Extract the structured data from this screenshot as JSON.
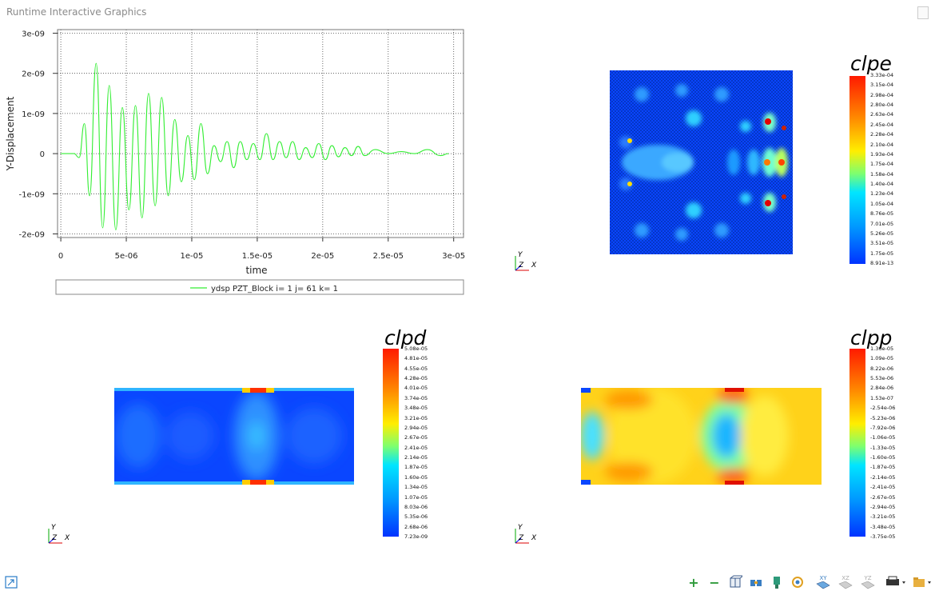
{
  "window": {
    "title": "Runtime Interactive Graphics"
  },
  "chart_data": {
    "type": "line",
    "title": "",
    "xlabel": "time",
    "ylabel": "Y-Displacement",
    "xlim": [
      0,
      3e-05
    ],
    "ylim": [
      -2e-09,
      3e-09
    ],
    "x_ticks": [
      "0",
      "5e-06",
      "1e-05",
      "1.5e-05",
      "2e-05",
      "2.5e-05",
      "3e-05"
    ],
    "y_ticks": [
      "3e-09",
      "2e-09",
      "1e-09",
      "0",
      "-1e-09",
      "-2e-09"
    ],
    "grid": true,
    "legend": "bottom",
    "series": [
      {
        "name": "ydsp PZT_Block i= 1 j= 61 k= 1",
        "color": "#33ee33",
        "x": [
          0,
          1e-06,
          1.4e-06,
          1.8e-06,
          2.2e-06,
          2.7e-06,
          3.2e-06,
          3.7e-06,
          4.2e-06,
          4.7e-06,
          5.2e-06,
          5.7e-06,
          6.2e-06,
          6.7e-06,
          7.2e-06,
          7.7e-06,
          8.2e-06,
          8.7e-06,
          9.2e-06,
          9.7e-06,
          1.02e-05,
          1.07e-05,
          1.12e-05,
          1.17e-05,
          1.22e-05,
          1.27e-05,
          1.32e-05,
          1.37e-05,
          1.42e-05,
          1.47e-05,
          1.52e-05,
          1.57e-05,
          1.62e-05,
          1.67e-05,
          1.72e-05,
          1.77e-05,
          1.82e-05,
          1.87e-05,
          1.92e-05,
          1.97e-05,
          2.02e-05,
          2.07e-05,
          2.12e-05,
          2.17e-05,
          2.22e-05,
          2.27e-05,
          2.32e-05,
          2.4e-05,
          2.5e-05,
          2.6e-05,
          2.7e-05,
          2.8e-05,
          2.9e-05,
          2.96e-05
        ],
        "values": [
          0,
          0,
          -1e-10,
          7.5e-10,
          -1.05e-09,
          2.25e-09,
          -1.85e-09,
          1.7e-09,
          -1.9e-09,
          1.15e-09,
          -1.4e-09,
          1.2e-09,
          -1.6e-09,
          1.5e-09,
          -1.3e-09,
          1.4e-09,
          -1.05e-09,
          8.5e-10,
          -7e-10,
          4.5e-10,
          -6.5e-10,
          7.5e-10,
          -5e-10,
          2e-10,
          -2e-10,
          3e-10,
          -3.5e-10,
          3e-10,
          -1.5e-10,
          2.5e-10,
          -1.5e-10,
          5e-10,
          -1.5e-10,
          3e-10,
          -1e-10,
          3e-10,
          -1.5e-10,
          1.5e-10,
          -1e-10,
          2.5e-10,
          -1.5e-10,
          2e-10,
          -8e-11,
          1.5e-10,
          -5e-11,
          1.8e-10,
          -5e-11,
          1e-10,
          0,
          5e-11,
          0,
          1e-10,
          -5e-11,
          0
        ]
      }
    ]
  },
  "plots": {
    "clpe": {
      "title": "clpe",
      "labels": [
        "3.33e-04",
        "3.15e-04",
        "2.98e-04",
        "2.80e-04",
        "2.63e-04",
        "2.45e-04",
        "2.28e-04",
        "2.10e-04",
        "1.93e-04",
        "1.75e-04",
        "1.58e-04",
        "1.40e-04",
        "1.23e-04",
        "1.05e-04",
        "8.76e-05",
        "7.01e-05",
        "5.26e-05",
        "3.51e-05",
        "1.75e-05",
        "8.91e-13"
      ]
    },
    "clpd": {
      "title": "clpd",
      "labels": [
        "5.08e-05",
        "4.81e-05",
        "4.55e-05",
        "4.28e-05",
        "4.01e-05",
        "3.74e-05",
        "3.48e-05",
        "3.21e-05",
        "2.94e-05",
        "2.67e-05",
        "2.41e-05",
        "2.14e-05",
        "1.87e-05",
        "1.60e-05",
        "1.34e-05",
        "1.07e-05",
        "8.03e-06",
        "5.35e-06",
        "2.68e-06",
        "7.23e-09"
      ]
    },
    "clpp": {
      "title": "clpp",
      "labels": [
        "1.36e-05",
        "1.09e-05",
        "8.22e-06",
        "5.53e-06",
        "2.84e-06",
        "1.53e-07",
        "-2.54e-06",
        "-5.23e-06",
        "-7.92e-06",
        "-1.06e-05",
        "-1.33e-05",
        "-1.60e-05",
        "-1.87e-05",
        "-2.14e-05",
        "-2.41e-05",
        "-2.67e-05",
        "-2.94e-05",
        "-3.21e-05",
        "-3.48e-05",
        "-3.75e-05"
      ]
    }
  },
  "axis_triad": {
    "y": "Y",
    "z": "Z",
    "x": "X"
  },
  "toolbar": {
    "xy_label": "XY",
    "xz_label": "XZ",
    "yz_label": "YZ"
  },
  "colors": {
    "blue": "#0033ff",
    "cyan": "#00e5ff",
    "yellow": "#ffee00",
    "red": "#ff1a00",
    "grid": "#444444"
  }
}
